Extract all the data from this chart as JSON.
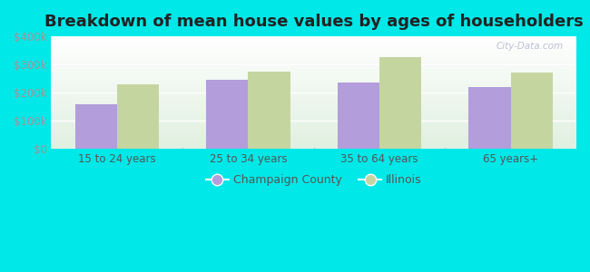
{
  "title": "Breakdown of mean house values by ages of householders",
  "categories": [
    "15 to 24 years",
    "25 to 34 years",
    "35 to 64 years",
    "65 years+"
  ],
  "champaign_values": [
    160000,
    245000,
    235000,
    220000
  ],
  "illinois_values": [
    230000,
    275000,
    325000,
    272000
  ],
  "champaign_color": "#b39ddb",
  "illinois_color": "#c5d5a0",
  "ylim": [
    0,
    400000
  ],
  "yticks": [
    0,
    100000,
    200000,
    300000,
    400000
  ],
  "ytick_labels": [
    "$0",
    "$100k",
    "$200k",
    "$300k",
    "$400k"
  ],
  "legend_labels": [
    "Champaign County",
    "Illinois"
  ],
  "bar_width": 0.32,
  "figure_bg": "#00e8e8",
  "plot_bg_color": "#e8f5e8",
  "title_fontsize": 13,
  "watermark": "City-Data.com",
  "grid_color": "#ffffff",
  "ytick_color": "#999999",
  "xtick_color": "#555555",
  "legend_text_color": "#555555"
}
